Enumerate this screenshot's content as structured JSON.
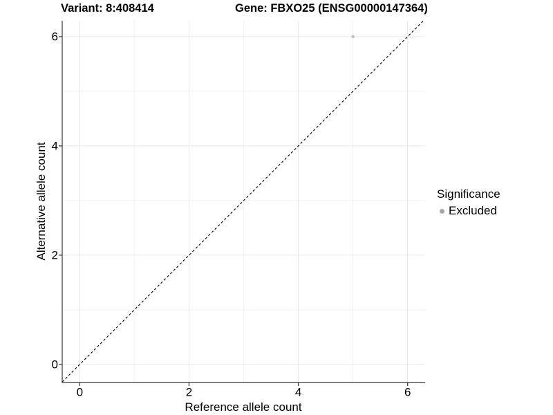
{
  "chart_data": {
    "type": "scatter",
    "title_left": "Variant: 8:408414",
    "title_right": "Gene: FBXO25 (ENSG00000147364)",
    "xlabel": "Reference allele count",
    "ylabel": "Alternative allele count",
    "x_ticks": [
      0,
      2,
      4,
      6
    ],
    "y_ticks": [
      0,
      2,
      4,
      6
    ],
    "x_minor_ticks": [
      1,
      3,
      5
    ],
    "y_minor_ticks": [
      1,
      3,
      5
    ],
    "xlim": [
      -0.32,
      6.32
    ],
    "ylim": [
      -0.33,
      6.29
    ],
    "grid": "major+minor",
    "points": [
      {
        "x": 5,
        "y": 6,
        "series": "Excluded",
        "color": "#c0c0c0",
        "radius": 2.3
      }
    ],
    "reference_line": {
      "type": "identity y=x",
      "style": "dashed",
      "color": "#000000"
    },
    "legend": {
      "title": "Significance",
      "position": "right",
      "items": [
        {
          "label": "Excluded",
          "color": "#a6a6a6"
        }
      ]
    },
    "colors": {
      "grid_major": "#e6e6e6",
      "grid_minor": "#f1f1f1",
      "axis_line": "#333333",
      "tick_mark": "#333333",
      "text": "#000000",
      "background": "#ffffff"
    }
  }
}
